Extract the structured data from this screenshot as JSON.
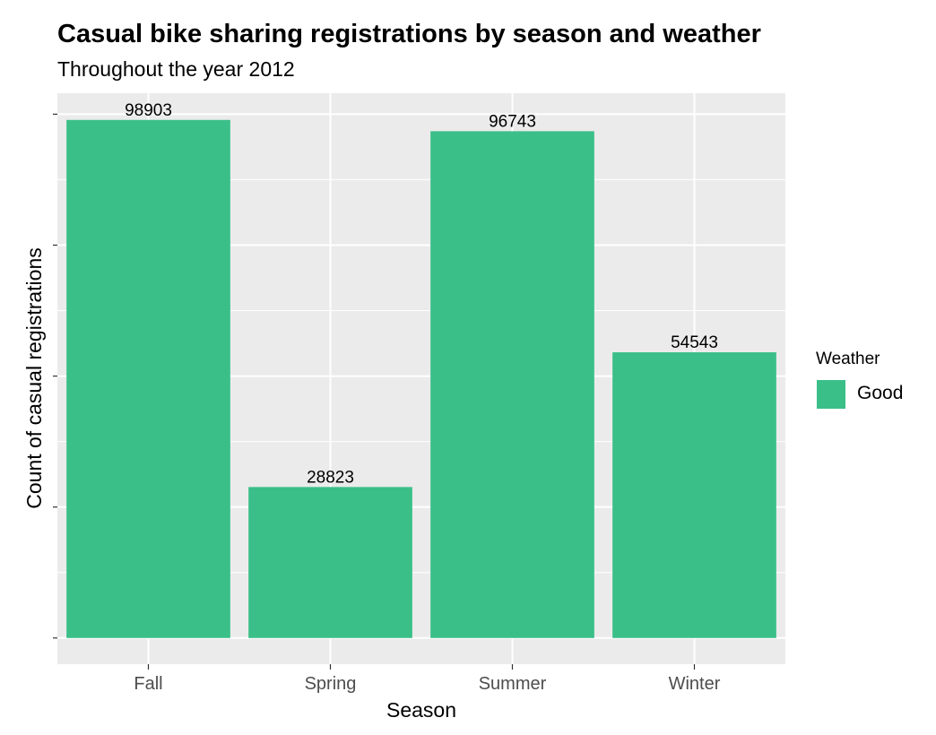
{
  "chart_data": {
    "type": "bar",
    "title": "Casual bike sharing registrations by season and weather",
    "subtitle": "Throughout the year 2012",
    "xlabel": "Season",
    "ylabel": "Count of casual registrations",
    "categories": [
      "Fall",
      "Spring",
      "Summer",
      "Winter"
    ],
    "series": [
      {
        "name": "Good",
        "values": [
          98903,
          28823,
          96743,
          54543
        ]
      }
    ],
    "ylim": [
      -5000,
      104000
    ],
    "y_tick_labels_shown": false,
    "grid": true,
    "legend": {
      "title": "Weather",
      "placement": "right"
    },
    "colors": {
      "bar": "#3bbf89",
      "panel": "#ebebeb",
      "grid": "#ffffff"
    }
  }
}
